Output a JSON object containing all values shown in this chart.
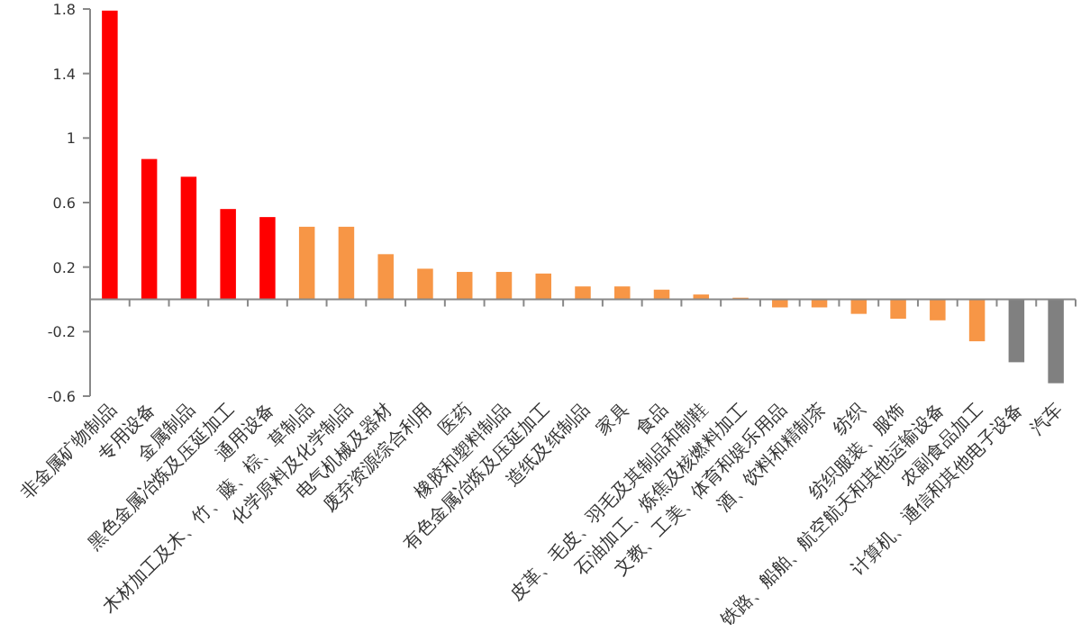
{
  "chart_data": {
    "type": "bar",
    "categories": [
      "非金属矿物制品",
      "专用设备",
      "金属制品",
      "黑色金属冶炼及压延加工",
      "通用设备",
      "木材加工及木、竹、藤、棕、草制品",
      "化学原料及化学制品",
      "电气机械及器材",
      "废弃资源综合利用",
      "医药",
      "橡胶和塑料制品",
      "有色金属冶炼及压延加工",
      "造纸及纸制品",
      "家具",
      "食品",
      "皮革、毛皮、羽毛及其制品和制鞋",
      "石油加工、炼焦及核燃料加工",
      "文教、工美、体育和娱乐用品",
      "酒、饮料和精制茶",
      "纺织",
      "纺织服装、服饰",
      "铁路、船舶、航空航天和其他运输设备",
      "农副食品加工",
      "计算机、通信和其他电子设备",
      "汽车"
    ],
    "values": [
      1.79,
      0.87,
      0.76,
      0.56,
      0.51,
      0.45,
      0.45,
      0.28,
      0.19,
      0.17,
      0.17,
      0.16,
      0.08,
      0.08,
      0.06,
      0.03,
      0.01,
      -0.05,
      -0.05,
      -0.09,
      -0.12,
      -0.13,
      -0.26,
      -0.39,
      -0.52
    ],
    "colors": [
      "#ff0000",
      "#ff0000",
      "#ff0000",
      "#ff0000",
      "#ff0000",
      "#f79646",
      "#f79646",
      "#f79646",
      "#f79646",
      "#f79646",
      "#f79646",
      "#f79646",
      "#f79646",
      "#f79646",
      "#f79646",
      "#f79646",
      "#f79646",
      "#f79646",
      "#f79646",
      "#f79646",
      "#f79646",
      "#f79646",
      "#f79646",
      "#808080",
      "#808080"
    ],
    "ylim": [
      -0.6,
      1.8
    ],
    "yticks": [
      -0.6,
      -0.2,
      0.2,
      0.6,
      1,
      1.4,
      1.8
    ],
    "grid": false
  }
}
